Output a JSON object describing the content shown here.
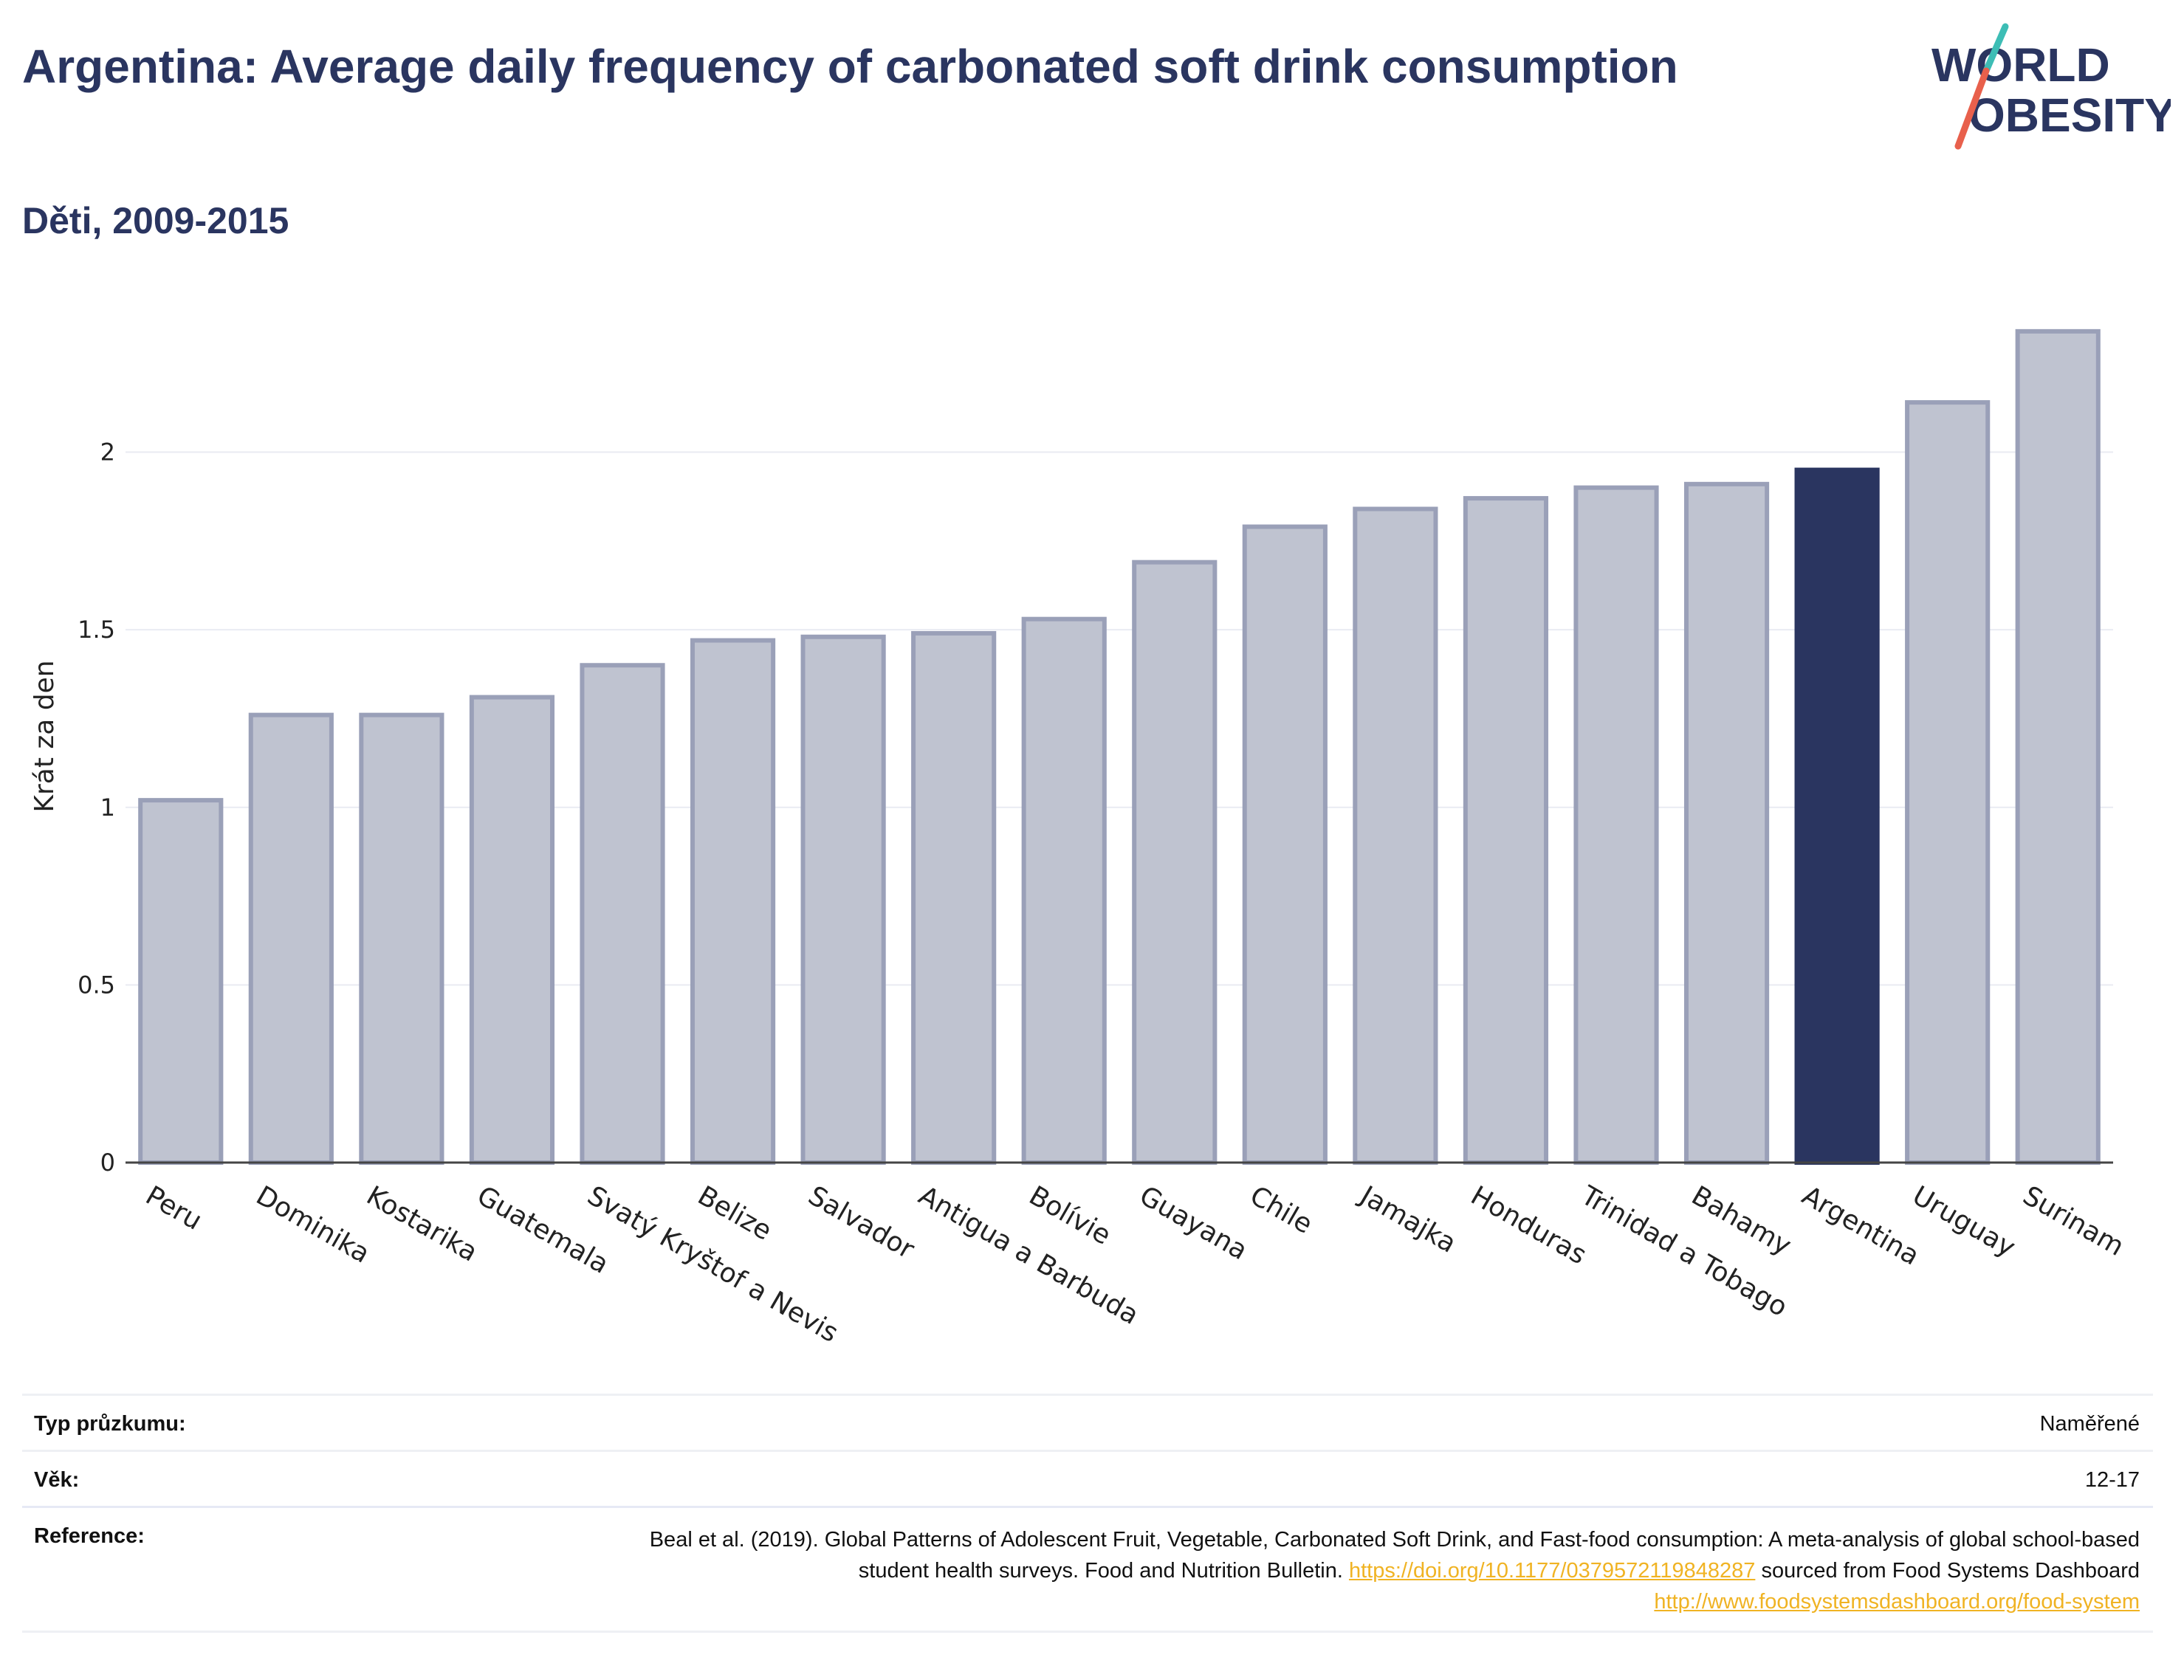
{
  "title": "Argentina: Average daily frequency of carbonated soft drink consumption",
  "subtitle": "Děti, 2009-2015",
  "logo": {
    "line1": "WORLD",
    "line2": "OBESITY",
    "slash_colors": [
      "#3dbdb5",
      "#e8604c"
    ]
  },
  "colors": {
    "highlight": "#2a3560",
    "bar_fill": "#bfc3d0",
    "bar_outline": "#9aa0b8",
    "axis_text": "#222222"
  },
  "chart_data": {
    "type": "bar",
    "title": "",
    "xlabel": "",
    "ylabel": "Krát za den",
    "ylim": [
      0,
      2.4
    ],
    "yticks": [
      0,
      0.5,
      1,
      1.5,
      2
    ],
    "ytick_labels": [
      "0",
      "0.5",
      "1",
      "1.5",
      "2"
    ],
    "grid": true,
    "highlight": "Argentina",
    "categories": [
      "Peru",
      "Dominika",
      "Kostarika",
      "Guatemala",
      "Svatý Kryštof a Nevis",
      "Belize",
      "Salvador",
      "Antigua a Barbuda",
      "Bolívie",
      "Guayana",
      "Chile",
      "Jamajka",
      "Honduras",
      "Trinidad a Tobago",
      "Bahamy",
      "Argentina",
      "Uruguay",
      "Surinam"
    ],
    "values": [
      1.02,
      1.26,
      1.26,
      1.31,
      1.4,
      1.47,
      1.48,
      1.49,
      1.53,
      1.69,
      1.79,
      1.84,
      1.87,
      1.9,
      1.91,
      1.95,
      2.14,
      2.34
    ]
  },
  "info": {
    "survey_label": "Typ průzkumu:",
    "survey_value": "Naměřené",
    "age_label": "Věk:",
    "age_value": "12-17",
    "ref_label": "Reference:",
    "ref_text_1": "Beal et al. (2019). Global Patterns of Adolescent Fruit, Vegetable, Carbonated Soft Drink, and Fast-food consumption: A meta-analysis of global school-based student health surveys. Food and Nutrition Bulletin.",
    "ref_link_1": "https://doi.org/10.1177/0379572119848287",
    "ref_text_2": "sourced from Food Systems Dashboard",
    "ref_link_2": "http://www.foodsystemsdashboard.org/food-system"
  }
}
